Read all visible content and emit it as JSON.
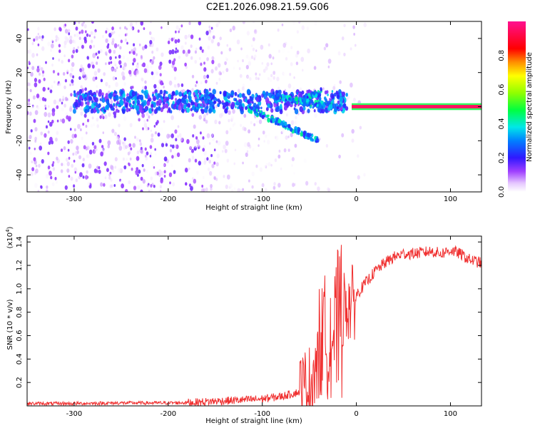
{
  "title": "C2E1.2026.098.21.59.G06",
  "chart_data": [
    {
      "type": "heatmap",
      "name": "spectrogram",
      "xlabel": "Height of straight line (km)",
      "ylabel": "Frequency (Hz)",
      "xlim": [
        -350,
        133
      ],
      "ylim": [
        -50,
        50
      ],
      "xticks": [
        -300,
        -200,
        -100,
        0,
        100
      ],
      "yticks": [
        -40,
        -20,
        0,
        20,
        40
      ],
      "colorbar": {
        "label": "Normalized spectral amplitude",
        "range": [
          0,
          1
        ],
        "ticks": [
          "0.0",
          "0.2",
          "0.4",
          "0.6",
          "0.8"
        ],
        "tick_values": [
          0.0,
          0.2,
          0.4,
          0.6,
          0.8
        ]
      },
      "description_features": {
        "tone_frequency_hz": 0,
        "tone_start_km": 0,
        "branch_upper": {
          "x": [
            -90,
            -30
          ],
          "y": [
            5,
            0
          ]
        },
        "branch_lower": {
          "x": [
            -110,
            -40
          ],
          "y": [
            -2,
            -20
          ]
        }
      }
    },
    {
      "type": "line",
      "name": "snr",
      "xlabel": "Height of straight line (km)",
      "ylabel": "SNR (10 * v/v)",
      "multiplier_label": "(x10",
      "multiplier_exp": "4",
      "multiplier_close": ")",
      "xlim": [
        -350,
        133
      ],
      "ylim": [
        0,
        1.45
      ],
      "xticks": [
        -300,
        -200,
        -100,
        0,
        100
      ],
      "yticks": [
        0.2,
        0.4,
        0.6,
        0.8,
        1.0,
        1.2,
        1.4
      ],
      "series": [
        {
          "name": "SNR",
          "color": "#f03030",
          "x": [
            -350,
            -300,
            -250,
            -200,
            -170,
            -150,
            -120,
            -100,
            -80,
            -60,
            -50,
            -45,
            -40,
            -35,
            -30,
            -25,
            -22,
            -20,
            -15,
            -10,
            -5,
            0,
            5,
            10,
            15,
            20,
            30,
            40,
            50,
            60,
            70,
            80,
            90,
            100,
            110,
            120,
            133
          ],
          "values": [
            0.02,
            0.02,
            0.025,
            0.025,
            0.03,
            0.04,
            0.05,
            0.06,
            0.08,
            0.12,
            0.18,
            0.3,
            0.35,
            0.45,
            0.55,
            0.6,
            0.5,
            0.7,
            0.8,
            0.9,
            0.85,
            0.95,
            1.0,
            1.05,
            1.1,
            1.15,
            1.22,
            1.27,
            1.3,
            1.3,
            1.31,
            1.32,
            1.3,
            1.33,
            1.3,
            1.25,
            1.22
          ]
        }
      ]
    }
  ]
}
